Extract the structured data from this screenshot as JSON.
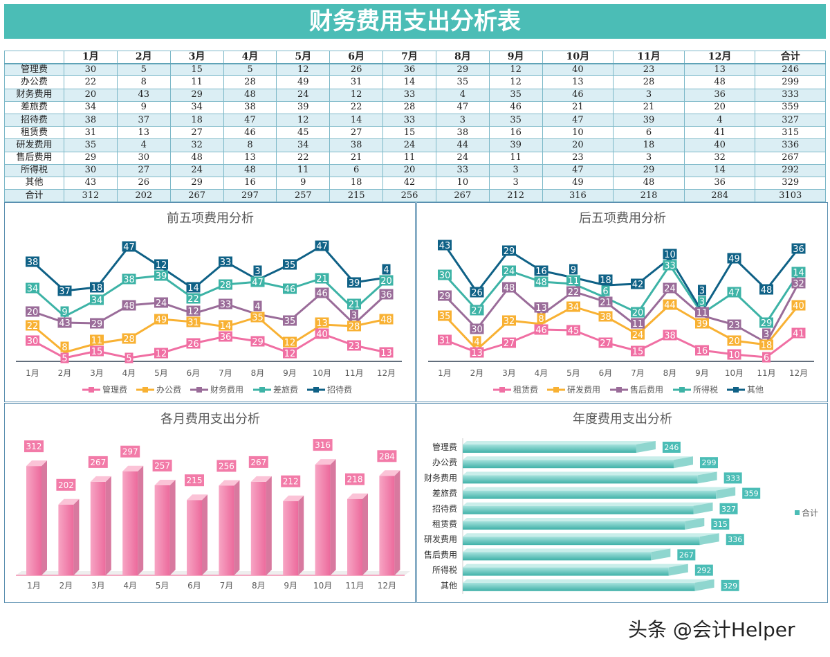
{
  "title": "财务费用支出分析表",
  "table": {
    "headers": [
      "",
      "1月",
      "2月",
      "3月",
      "4月",
      "5月",
      "6月",
      "7月",
      "8月",
      "9月",
      "10月",
      "11月",
      "12月",
      "合计"
    ],
    "rows": [
      [
        "管理费",
        30,
        5,
        15,
        5,
        12,
        26,
        36,
        29,
        12,
        40,
        23,
        13,
        246
      ],
      [
        "办公费",
        22,
        8,
        11,
        28,
        49,
        31,
        14,
        35,
        12,
        13,
        28,
        48,
        299
      ],
      [
        "财务费用",
        20,
        43,
        29,
        48,
        24,
        12,
        33,
        4,
        35,
        46,
        3,
        36,
        333
      ],
      [
        "差旅费",
        34,
        9,
        34,
        38,
        39,
        22,
        28,
        47,
        46,
        21,
        21,
        20,
        359
      ],
      [
        "招待费",
        38,
        37,
        18,
        47,
        12,
        14,
        33,
        3,
        35,
        47,
        39,
        4,
        327
      ],
      [
        "租赁费",
        31,
        13,
        27,
        46,
        45,
        27,
        15,
        38,
        16,
        10,
        6,
        41,
        315
      ],
      [
        "研发费用",
        35,
        4,
        32,
        8,
        34,
        38,
        24,
        44,
        39,
        20,
        18,
        40,
        336
      ],
      [
        "售后费用",
        29,
        30,
        48,
        13,
        22,
        21,
        11,
        24,
        11,
        23,
        3,
        32,
        267
      ],
      [
        "所得税",
        30,
        27,
        24,
        48,
        11,
        6,
        20,
        33,
        3,
        47,
        29,
        14,
        292
      ],
      [
        "其他",
        43,
        26,
        29,
        16,
        9,
        18,
        42,
        10,
        3,
        49,
        48,
        36,
        329
      ],
      [
        "合计",
        312,
        202,
        267,
        297,
        257,
        215,
        256,
        267,
        212,
        316,
        218,
        284,
        3103
      ]
    ]
  },
  "chart_data": [
    {
      "type": "line",
      "stacked": true,
      "title": "前五项费用分析",
      "legend": "bottom",
      "categories": [
        "1月",
        "2月",
        "3月",
        "4月",
        "5月",
        "6月",
        "7月",
        "8月",
        "9月",
        "10月",
        "11月",
        "12月"
      ],
      "series": [
        {
          "name": "管理费",
          "color": "#f06fa3",
          "values": [
            30,
            5,
            15,
            5,
            12,
            26,
            36,
            29,
            12,
            40,
            23,
            13
          ]
        },
        {
          "name": "办公费",
          "color": "#f8b133",
          "values": [
            22,
            8,
            11,
            28,
            49,
            31,
            14,
            35,
            12,
            13,
            28,
            48
          ]
        },
        {
          "name": "财务费用",
          "color": "#9a6c99",
          "values": [
            20,
            43,
            29,
            48,
            24,
            12,
            33,
            4,
            35,
            46,
            3,
            36
          ]
        },
        {
          "name": "差旅费",
          "color": "#3db3a6",
          "values": [
            34,
            9,
            34,
            38,
            39,
            22,
            28,
            47,
            46,
            21,
            21,
            20
          ]
        },
        {
          "name": "招待费",
          "color": "#0f6186",
          "values": [
            38,
            37,
            18,
            47,
            12,
            14,
            33,
            3,
            35,
            47,
            39,
            4
          ]
        }
      ]
    },
    {
      "type": "line",
      "stacked": true,
      "title": "后五项费用分析",
      "legend": "bottom",
      "categories": [
        "1月",
        "2月",
        "3月",
        "4月",
        "5月",
        "6月",
        "7月",
        "8月",
        "9月",
        "10月",
        "11月",
        "12月"
      ],
      "series": [
        {
          "name": "租赁费",
          "color": "#f06fa3",
          "values": [
            31,
            13,
            27,
            46,
            45,
            27,
            15,
            38,
            16,
            10,
            6,
            41
          ]
        },
        {
          "name": "研发费用",
          "color": "#f8b133",
          "values": [
            35,
            4,
            32,
            8,
            34,
            38,
            24,
            44,
            39,
            20,
            18,
            40
          ]
        },
        {
          "name": "售后费用",
          "color": "#9a6c99",
          "values": [
            29,
            30,
            48,
            13,
            22,
            21,
            11,
            24,
            11,
            23,
            3,
            32
          ]
        },
        {
          "name": "所得税",
          "color": "#3db3a6",
          "values": [
            30,
            27,
            24,
            48,
            11,
            6,
            20,
            33,
            3,
            47,
            29,
            14
          ]
        },
        {
          "name": "其他",
          "color": "#0f6186",
          "values": [
            43,
            26,
            29,
            16,
            9,
            18,
            42,
            10,
            3,
            49,
            48,
            36
          ]
        }
      ]
    },
    {
      "type": "bar",
      "title": "各月费用支出分析",
      "color": "#f27ba8",
      "categories": [
        "1月",
        "2月",
        "3月",
        "4月",
        "5月",
        "6月",
        "7月",
        "8月",
        "9月",
        "10月",
        "11月",
        "12月"
      ],
      "values": [
        312,
        202,
        267,
        297,
        257,
        215,
        256,
        267,
        212,
        316,
        218,
        284
      ]
    },
    {
      "type": "bar",
      "orientation": "horizontal",
      "title": "年度费用支出分析",
      "color": "#4bbdb6",
      "legend": "right",
      "series_name": "合计",
      "categories": [
        "管理费",
        "办公费",
        "财务费用",
        "差旅费",
        "招待费",
        "租赁费",
        "研发费用",
        "售后费用",
        "所得税",
        "其他"
      ],
      "values": [
        246,
        299,
        333,
        359,
        327,
        315,
        336,
        267,
        292,
        329
      ]
    }
  ],
  "watermark": "头条 @会计Helper"
}
